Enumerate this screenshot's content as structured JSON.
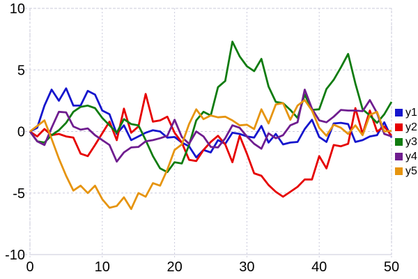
{
  "chart": {
    "title": "",
    "background_color": "#ffffff",
    "grid_color": "#c9c9da",
    "text_color": "#000000"
  },
  "chart_data": {
    "type": "line",
    "title": "",
    "xlabel": "",
    "ylabel": "",
    "xlim": [
      0,
      50
    ],
    "ylim": [
      -10,
      10
    ],
    "x_ticks": [
      "0",
      "10",
      "20",
      "30",
      "40",
      "50"
    ],
    "y_ticks": [
      "10",
      "5",
      "0",
      "-5",
      "-10"
    ],
    "x_tick_values": [
      0,
      10,
      20,
      30,
      40,
      50
    ],
    "y_tick_values": [
      10,
      5,
      0,
      -5,
      -10
    ],
    "grid": "dashed",
    "legend_position": "outside-right",
    "x": [
      0,
      1,
      2,
      3,
      4,
      5,
      6,
      7,
      8,
      9,
      10,
      11,
      12,
      13,
      14,
      15,
      16,
      17,
      18,
      19,
      20,
      21,
      22,
      23,
      24,
      25,
      26,
      27,
      28,
      29,
      30,
      31,
      32,
      33,
      34,
      35,
      36,
      37,
      38,
      39,
      40,
      41,
      42,
      43,
      44,
      45,
      46,
      47,
      48,
      49,
      50
    ],
    "series": [
      {
        "name": "y1",
        "color": "#1515cd",
        "values": [
          0,
          0.3,
          2.1,
          3.4,
          2.5,
          3.5,
          2.1,
          2.1,
          3.3,
          3.0,
          1.7,
          1.4,
          -0.2,
          0.5,
          -0.7,
          -0.4,
          -0.1,
          0.1,
          0.0,
          -0.5,
          -0.45,
          -0.9,
          -1.2,
          -2.1,
          -1.5,
          -1.7,
          -0.7,
          -1.0,
          -0.1,
          -0.2,
          -0.4,
          -0.5,
          0.45,
          -0.9,
          -0.2,
          -1.05,
          -0.9,
          -0.85,
          0.2,
          0.95,
          -0.45,
          -0.85,
          0.65,
          0.7,
          0.6,
          -0.85,
          -0.7,
          -0.4,
          -0.3,
          0.75,
          -0.5
        ]
      },
      {
        "name": "y2",
        "color": "#e60000",
        "values": [
          0,
          -0.4,
          0.2,
          -0.3,
          -0.2,
          -0.4,
          -0.5,
          -1.8,
          -2.0,
          -1.1,
          -0.15,
          0.8,
          -0.7,
          1.85,
          -0.1,
          0.4,
          3.05,
          0.8,
          0.9,
          1.2,
          -0.1,
          -0.9,
          -2.3,
          -2.4,
          -1.5,
          -0.85,
          -0.35,
          -1.05,
          -2.5,
          -0.35,
          -1.8,
          -3.4,
          -3.6,
          -4.35,
          -4.9,
          -5.3,
          -4.9,
          -4.5,
          -3.9,
          -3.9,
          -2.0,
          -3.0,
          -1.1,
          -1.2,
          -1.0,
          1.9,
          -0.2,
          1.7,
          0.0,
          0.4,
          -0.35
        ]
      },
      {
        "name": "y3",
        "color": "#107c10",
        "values": [
          0,
          -0.8,
          -0.9,
          -0.3,
          0.1,
          0.7,
          1.6,
          2.0,
          2.1,
          1.9,
          1.1,
          0.5,
          -0.1,
          1.0,
          0.6,
          0.5,
          -0.7,
          -2.0,
          -3.0,
          -3.3,
          -2.5,
          -2.6,
          -1.1,
          0.9,
          1.6,
          1.3,
          3.6,
          4.1,
          7.3,
          6.1,
          5.3,
          4.9,
          5.9,
          3.65,
          2.4,
          2.3,
          1.75,
          1.1,
          3.0,
          1.75,
          1.8,
          3.45,
          4.2,
          5.2,
          6.3,
          3.9,
          1.8,
          1.3,
          0.7,
          1.4,
          2.4
        ]
      },
      {
        "name": "y4",
        "color": "#6f1d8f",
        "values": [
          0,
          -0.8,
          -1.1,
          0.3,
          1.6,
          1.55,
          0.4,
          0.15,
          0.25,
          -0.3,
          -0.7,
          -1.1,
          -2.45,
          -1.7,
          -1.3,
          -1.25,
          -0.8,
          -0.7,
          -0.55,
          -0.35,
          0.95,
          -0.45,
          -1.0,
          0.0,
          -0.4,
          -1.25,
          -1.3,
          -0.55,
          0.5,
          0.3,
          -0.4,
          -1.0,
          -1.4,
          -0.15,
          -0.55,
          -0.3,
          0.5,
          0.75,
          3.4,
          1.85,
          0.9,
          0.75,
          1.2,
          1.75,
          1.7,
          1.7,
          1.65,
          2.55,
          1.5,
          -0.2,
          -0.4
        ]
      },
      {
        "name": "y5",
        "color": "#e6940f",
        "values": [
          0,
          0.45,
          0.9,
          -0.6,
          -2.2,
          -3.6,
          -4.8,
          -4.4,
          -5.0,
          -4.4,
          -5.5,
          -6.2,
          -6.05,
          -5.35,
          -6.3,
          -5.0,
          -5.3,
          -4.2,
          -4.4,
          -3.1,
          -1.5,
          -1.05,
          0.6,
          1.8,
          1.0,
          1.3,
          1.15,
          1.2,
          0.9,
          0.5,
          0.55,
          0.2,
          1.8,
          0.65,
          2.2,
          2.3,
          0.95,
          2.1,
          2.55,
          1.7,
          0.3,
          -0.35,
          0.55,
          0.3,
          -0.2,
          0.5,
          -0.3,
          1.35,
          1.6,
          0.0,
          0.05
        ]
      }
    ]
  }
}
